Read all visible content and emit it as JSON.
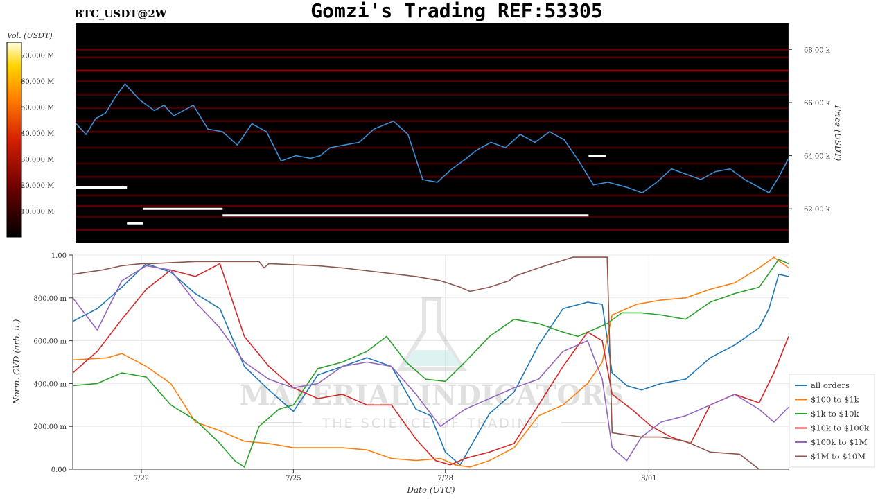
{
  "header": {
    "pair": "BTC_USDT@2W",
    "title": "Gomzi's Trading REF:53305"
  },
  "watermark": {
    "line1": "MATERIAL INDICATORS",
    "line2": "THE SCIENCE OF TRADING"
  },
  "colors": {
    "heatmap_bg": "#000000",
    "price_line": "#3a8fd6",
    "walls": "#ffffff"
  },
  "chart_data": [
    {
      "type": "heatmap",
      "colorbar": {
        "label": "Vol. (USDT)",
        "range": [
          0,
          75000000
        ],
        "ticks": [
          "10.000 M",
          "20.000 M",
          "30.000 M",
          "40.000 M",
          "50.000 M",
          "60.000 M",
          "70.000 M"
        ],
        "tick_values": [
          10000000,
          20000000,
          30000000,
          40000000,
          50000000,
          60000000,
          70000000
        ]
      },
      "ylabel": "Price (USDT)",
      "ylim": [
        60700,
        69000
      ],
      "yticks": [
        "62.00 k",
        "64.00 k",
        "66.00 k",
        "68.00 k"
      ],
      "ytick_values": [
        62000,
        64000,
        66000,
        68000
      ],
      "xlim": [
        0,
        14.6
      ],
      "price_series": {
        "x": [
          0,
          0.2,
          0.4,
          0.6,
          0.8,
          1.0,
          1.3,
          1.6,
          1.8,
          2.0,
          2.4,
          2.7,
          3.0,
          3.3,
          3.6,
          3.9,
          4.2,
          4.5,
          4.8,
          5.0,
          5.2,
          5.5,
          5.8,
          6.1,
          6.5,
          6.8,
          7.1,
          7.4,
          7.7,
          8.0,
          8.2,
          8.5,
          8.8,
          9.1,
          9.4,
          9.7,
          10.0,
          10.3,
          10.6,
          10.9,
          11.1,
          11.3,
          11.6,
          11.9,
          12.2,
          12.5,
          12.8,
          13.1,
          13.4,
          13.7,
          14.0,
          14.2,
          14.4,
          14.6
        ],
        "y": [
          65200,
          64800,
          65400,
          65600,
          66200,
          66700,
          66100,
          65700,
          65900,
          65500,
          65900,
          65000,
          64900,
          64400,
          65200,
          64900,
          63800,
          64000,
          63900,
          64000,
          64300,
          64400,
          64500,
          65000,
          65300,
          64800,
          63100,
          63000,
          63500,
          63900,
          64200,
          64500,
          64300,
          64800,
          64500,
          64900,
          64600,
          63800,
          62900,
          63000,
          62900,
          62800,
          62600,
          63000,
          63500,
          63300,
          63100,
          63400,
          63500,
          63100,
          62800,
          62600,
          63200,
          63900
        ]
      },
      "walls": [
        {
          "price": 62800,
          "x_start": 0,
          "x_end": 1.04
        },
        {
          "price": 62000,
          "x_start": 1.37,
          "x_end": 3.0
        },
        {
          "price": 61450,
          "x_start": 1.04,
          "x_end": 1.37
        },
        {
          "price": 61750,
          "x_start": 3.0,
          "x_end": 10.5
        },
        {
          "price": 63990,
          "x_start": 10.5,
          "x_end": 10.85
        }
      ],
      "heat_rows": [
        {
          "price": 68000,
          "level": 0.35
        },
        {
          "price": 67700,
          "level": 0.25
        },
        {
          "price": 67200,
          "level": 0.45
        },
        {
          "price": 66800,
          "level": 0.22
        },
        {
          "price": 66300,
          "level": 0.18
        },
        {
          "price": 65800,
          "level": 0.2
        },
        {
          "price": 65300,
          "level": 0.22
        },
        {
          "price": 64900,
          "level": 0.25
        },
        {
          "price": 64300,
          "level": 0.2
        },
        {
          "price": 63700,
          "level": 0.18
        },
        {
          "price": 63200,
          "level": 0.22
        },
        {
          "price": 62500,
          "level": 0.2
        },
        {
          "price": 62100,
          "level": 0.28
        },
        {
          "price": 61700,
          "level": 0.22
        },
        {
          "price": 61200,
          "level": 0.32
        }
      ]
    },
    {
      "type": "line",
      "xlabel": "Date (UTC)",
      "ylabel": "Norm. CVD (arb. u.)",
      "xlim": [
        0,
        14.6
      ],
      "ylim": [
        0,
        1
      ],
      "xticks": [
        {
          "label": "7/22",
          "value": 1.4
        },
        {
          "label": "7/25",
          "value": 4.5
        },
        {
          "label": "7/28",
          "value": 7.6
        },
        {
          "label": "8/01",
          "value": 11.75
        }
      ],
      "yticks": [
        "0.00",
        "200.00 m",
        "400.00 m",
        "600.00 m",
        "800.00 m",
        "1.00"
      ],
      "ytick_values": [
        0,
        0.2,
        0.4,
        0.6,
        0.8,
        1.0
      ],
      "legend_position": "right",
      "series": [
        {
          "name": "all orders",
          "color": "#1f77b4",
          "x": [
            0,
            0.5,
            1.0,
            1.5,
            2.0,
            2.5,
            3.0,
            3.5,
            4.0,
            4.5,
            5.0,
            5.5,
            6.0,
            6.5,
            7.0,
            7.3,
            7.6,
            7.9,
            8.2,
            8.5,
            9.0,
            9.5,
            10.0,
            10.5,
            10.8,
            11.0,
            11.3,
            11.6,
            12.0,
            12.5,
            13.0,
            13.5,
            14.0,
            14.2,
            14.4,
            14.6
          ],
          "y": [
            0.69,
            0.75,
            0.85,
            0.96,
            0.92,
            0.82,
            0.75,
            0.48,
            0.37,
            0.27,
            0.44,
            0.48,
            0.52,
            0.48,
            0.28,
            0.25,
            0.08,
            0.02,
            0.14,
            0.26,
            0.36,
            0.58,
            0.75,
            0.78,
            0.77,
            0.45,
            0.39,
            0.37,
            0.4,
            0.42,
            0.52,
            0.58,
            0.66,
            0.75,
            0.91,
            0.9
          ]
        },
        {
          "name": "$100 to $1k",
          "color": "#ff7f0e",
          "x": [
            0,
            0.7,
            1.0,
            1.5,
            2.0,
            2.5,
            3.0,
            3.5,
            4.0,
            4.5,
            5.0,
            5.5,
            6.0,
            6.5,
            7.0,
            7.5,
            7.8,
            8.1,
            8.5,
            9.0,
            9.5,
            10.0,
            10.5,
            10.8,
            11.0,
            11.5,
            12.0,
            12.5,
            13.0,
            13.5,
            14.0,
            14.3,
            14.6
          ],
          "y": [
            0.51,
            0.52,
            0.54,
            0.48,
            0.4,
            0.22,
            0.18,
            0.13,
            0.12,
            0.1,
            0.1,
            0.1,
            0.09,
            0.05,
            0.04,
            0.05,
            0.02,
            0.01,
            0.04,
            0.1,
            0.25,
            0.3,
            0.4,
            0.5,
            0.72,
            0.77,
            0.79,
            0.8,
            0.84,
            0.87,
            0.94,
            0.99,
            0.94
          ]
        },
        {
          "name": "$1k to $10k",
          "color": "#2ca02c",
          "x": [
            0,
            0.5,
            1.0,
            1.5,
            2.0,
            2.5,
            3.0,
            3.3,
            3.5,
            3.8,
            4.2,
            4.5,
            5.0,
            5.5,
            6.0,
            6.4,
            6.8,
            7.2,
            7.6,
            8.0,
            8.5,
            9.0,
            9.5,
            10.0,
            10.3,
            10.6,
            10.9,
            11.2,
            11.6,
            12.0,
            12.5,
            13.0,
            13.5,
            14.0,
            14.4,
            14.6
          ],
          "y": [
            0.39,
            0.4,
            0.45,
            0.43,
            0.3,
            0.23,
            0.12,
            0.04,
            0.01,
            0.2,
            0.28,
            0.3,
            0.47,
            0.5,
            0.55,
            0.62,
            0.5,
            0.42,
            0.41,
            0.5,
            0.62,
            0.7,
            0.68,
            0.64,
            0.62,
            0.65,
            0.68,
            0.73,
            0.73,
            0.72,
            0.7,
            0.78,
            0.82,
            0.85,
            0.98,
            0.96
          ]
        },
        {
          "name": "$10k to $100k",
          "color": "#d62728",
          "x": [
            0,
            0.5,
            1.0,
            1.5,
            2.0,
            2.5,
            3.0,
            3.5,
            4.0,
            4.5,
            5.0,
            5.5,
            6.0,
            6.5,
            7.0,
            7.4,
            7.7,
            8.0,
            8.5,
            9.0,
            9.5,
            10.0,
            10.5,
            10.8,
            11.0,
            11.4,
            11.8,
            12.2,
            12.6,
            13.0,
            13.5,
            14.0,
            14.3,
            14.6
          ],
          "y": [
            0.45,
            0.55,
            0.7,
            0.84,
            0.93,
            0.9,
            0.96,
            0.62,
            0.48,
            0.38,
            0.33,
            0.35,
            0.3,
            0.3,
            0.14,
            0.04,
            0.02,
            0.05,
            0.08,
            0.12,
            0.3,
            0.48,
            0.64,
            0.6,
            0.35,
            0.28,
            0.2,
            0.15,
            0.12,
            0.3,
            0.35,
            0.31,
            0.45,
            0.62
          ]
        },
        {
          "name": "$100k to $1M",
          "color": "#9467bd",
          "x": [
            0,
            0.5,
            1.0,
            1.5,
            2.0,
            2.5,
            3.0,
            3.5,
            4.0,
            4.5,
            5.0,
            5.5,
            6.0,
            6.5,
            7.0,
            7.5,
            8.0,
            8.5,
            9.0,
            9.5,
            10.0,
            10.5,
            10.8,
            11.0,
            11.3,
            11.6,
            12.0,
            12.5,
            13.0,
            13.5,
            14.0,
            14.3,
            14.6
          ],
          "y": [
            0.8,
            0.65,
            0.88,
            0.95,
            0.93,
            0.78,
            0.66,
            0.5,
            0.42,
            0.38,
            0.4,
            0.48,
            0.5,
            0.48,
            0.35,
            0.2,
            0.28,
            0.33,
            0.38,
            0.42,
            0.55,
            0.6,
            0.42,
            0.1,
            0.04,
            0.15,
            0.22,
            0.25,
            0.3,
            0.35,
            0.28,
            0.22,
            0.29
          ]
        },
        {
          "name": "$1M to $10M",
          "color": "#8c564b",
          "x": [
            0,
            0.3,
            0.6,
            1.0,
            1.4,
            1.6,
            2.5,
            3.8,
            3.9,
            4.0,
            5.0,
            5.5,
            7.0,
            7.5,
            7.9,
            8.1,
            8.5,
            8.9,
            9.0,
            9.5,
            10.2,
            10.9,
            11.0,
            11.3,
            11.6,
            12.0,
            12.5,
            12.8,
            13.0,
            13.6,
            14.0,
            14.6
          ],
          "y": [
            0.91,
            0.92,
            0.93,
            0.95,
            0.96,
            0.96,
            0.97,
            0.97,
            0.94,
            0.96,
            0.95,
            0.94,
            0.9,
            0.88,
            0.85,
            0.83,
            0.85,
            0.88,
            0.9,
            0.94,
            0.99,
            0.99,
            0.17,
            0.16,
            0.15,
            0.15,
            0.13,
            0.1,
            0.08,
            0.07,
            0.0,
            0.0
          ]
        }
      ]
    }
  ]
}
